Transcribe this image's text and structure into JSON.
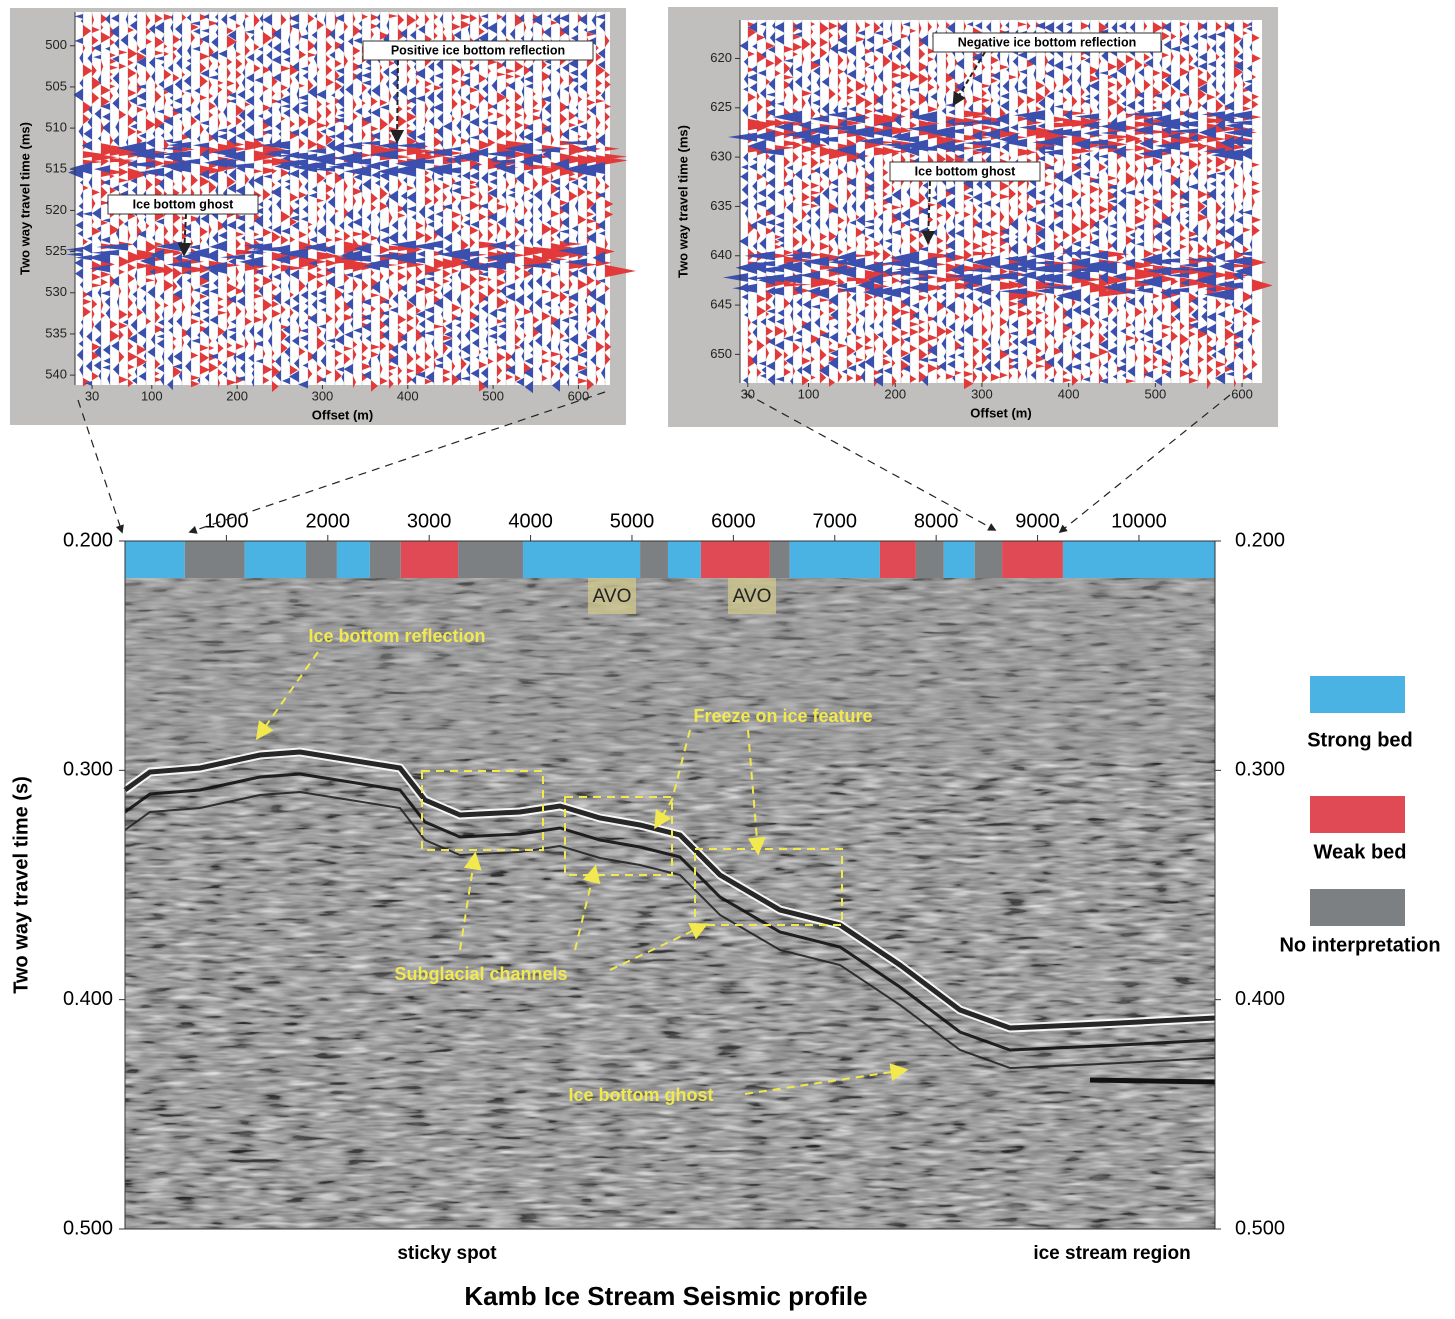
{
  "chart_data": [
    {
      "type": "wiggle",
      "xlabel": "Offset (m)",
      "ylabel": "Two way travel time (ms)",
      "xlim": [
        10,
        637
      ],
      "xticks": [
        30,
        100,
        200,
        300,
        400,
        500,
        600
      ],
      "ylim": [
        495.9,
        541.2
      ],
      "yticks": [
        500,
        505,
        510,
        515,
        520,
        525,
        530,
        535,
        540
      ],
      "y_inverted": true,
      "annotations": [
        "Positive ice bottom reflection",
        "Ice bottom ghost"
      ]
    },
    {
      "type": "wiggle",
      "xlabel": "Offset (m)",
      "ylabel": "Two way travel time (ms)",
      "xlim": [
        21,
        623
      ],
      "xticks": [
        30,
        100,
        200,
        300,
        400,
        500,
        600
      ],
      "ylim": [
        616.1,
        652.9
      ],
      "yticks": [
        620,
        625,
        630,
        635,
        640,
        645,
        650
      ],
      "y_inverted": true,
      "annotations": [
        "Negative ice bottom reflection",
        "Ice bottom ghost"
      ]
    },
    {
      "type": "seismic",
      "title": "Kamb Ice Stream Seismic profile",
      "ylabel": "Two way travel time (s)",
      "xlim": [
        0,
        10750
      ],
      "xticks": [
        1000,
        2000,
        3000,
        4000,
        5000,
        6000,
        7000,
        8000,
        9000,
        10000
      ],
      "ylim": [
        0.2,
        0.5
      ],
      "y_inverted": true,
      "yticks": [
        {
          "value": 0.2,
          "label": "0.200"
        },
        {
          "value": 0.3,
          "label": "0.300"
        },
        {
          "value": 0.4,
          "label": "0.400"
        },
        {
          "value": 0.5,
          "label": "0.500"
        }
      ],
      "series": [
        {
          "name": "Strong bed",
          "color": "#4ab3e3",
          "spans": [
            [
              0,
              590
            ],
            [
              1180,
              1785
            ],
            [
              2090,
              2415
            ],
            [
              3925,
              5080
            ],
            [
              5355,
              5680
            ],
            [
              6555,
              7445
            ],
            [
              8075,
              8380
            ],
            [
              9250,
              10750
            ]
          ]
        },
        {
          "name": "Weak bed",
          "color": "#e04a55",
          "spans": [
            [
              2720,
              3285
            ],
            [
              5680,
              6360
            ],
            [
              7445,
              7800
            ],
            [
              8650,
              9250
            ]
          ]
        },
        {
          "name": "No interpretation",
          "color": "#7d8083",
          "spans": [
            [
              590,
              1180
            ],
            [
              1785,
              2090
            ],
            [
              2415,
              2720
            ],
            [
              3285,
              3925
            ],
            [
              5080,
              5355
            ],
            [
              6360,
              6555
            ],
            [
              7800,
              8075
            ],
            [
              8380,
              8650
            ]
          ]
        }
      ],
      "annotations": [
        "Ice bottom reflection",
        "Freeze on ice feature",
        "Subglacial channels",
        "Ice bottom ghost",
        "AVO",
        "AVO"
      ],
      "region_labels": [
        "sticky spot",
        "ice stream region"
      ]
    }
  ]
}
